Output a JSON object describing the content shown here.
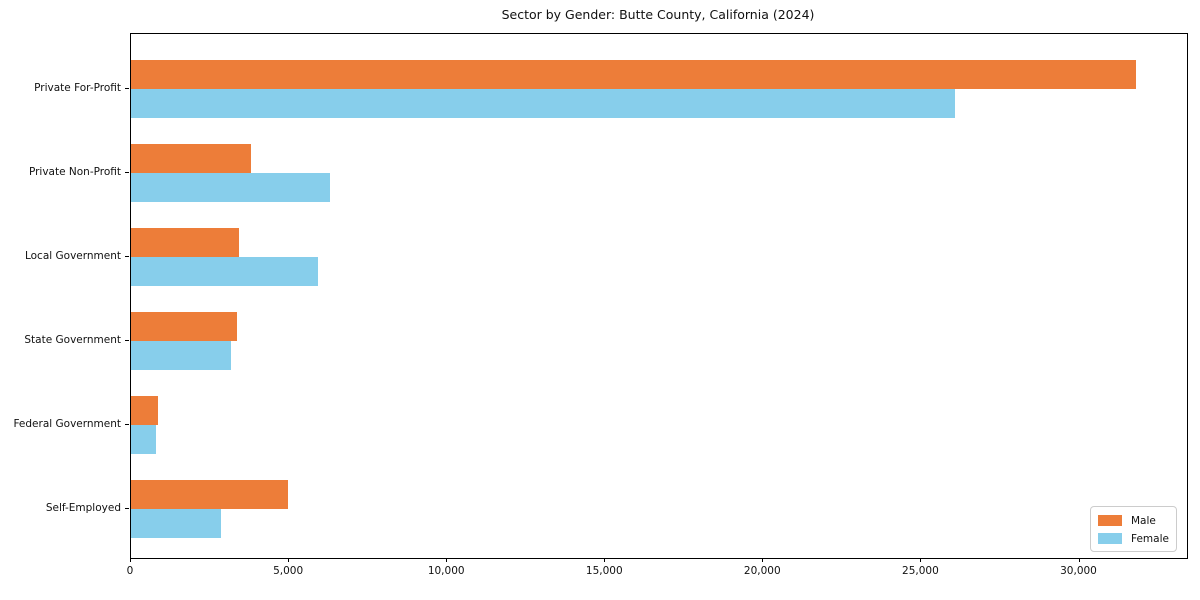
{
  "chart_data": {
    "type": "bar",
    "orientation": "horizontal",
    "title": "Sector by Gender: Butte County, California (2024)",
    "xlabel": "",
    "ylabel": "",
    "categories": [
      "Private For-Profit",
      "Private Non-Profit",
      "Local Government",
      "State Government",
      "Federal Government",
      "Self-Employed"
    ],
    "series": [
      {
        "name": "Male",
        "color": "#ED7D39",
        "values": [
          31800,
          3800,
          3400,
          3350,
          850,
          4950
        ]
      },
      {
        "name": "Female",
        "color": "#87CEEB",
        "values": [
          26050,
          6300,
          5900,
          3150,
          790,
          2850
        ]
      }
    ],
    "xlim": [
      0,
      33400
    ],
    "xticks": [
      0,
      5000,
      10000,
      15000,
      20000,
      25000,
      30000
    ],
    "xtick_labels": [
      "0",
      "5,000",
      "10,000",
      "15,000",
      "20,000",
      "25,000",
      "30,000"
    ],
    "grid": false,
    "legend_position": "lower right",
    "legend_entries": [
      "Male",
      "Female"
    ]
  }
}
